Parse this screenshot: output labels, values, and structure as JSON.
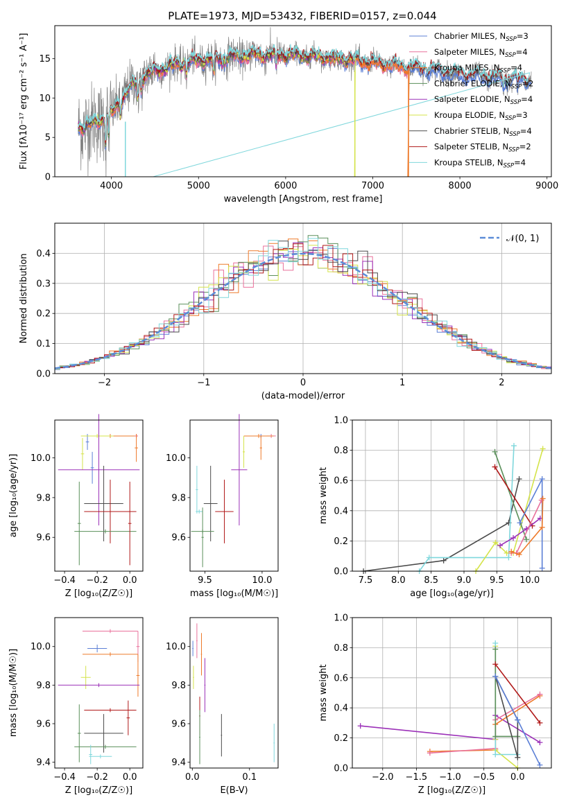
{
  "figure": {
    "title": "PLATE=1973, MJD=53432, FIBERID=0157, z=0.044"
  },
  "colors": {
    "chabrier_miles": "#5b7fd6",
    "salpeter_miles": "#e9709b",
    "kroupa_miles": "#ee7a2a",
    "chabrier_elodie": "#5a8f5a",
    "salpeter_elodie": "#9b30b8",
    "kroupa_elodie": "#d4e34a",
    "chabrier_stelib": "#4a4a4a",
    "salpeter_stelib": "#b01818",
    "kroupa_stelib": "#7fd7dc",
    "data_gray": "#7f7f7f",
    "gauss": "#5b8cd8"
  },
  "chart_data": [
    {
      "type": "line",
      "panel": "spectrum",
      "xlabel": "wavelength [Angstrom, rest frame]",
      "ylabel": "Flux [f$_\\lambda$10$^{-17}$ erg cm$^{-2}$ s$^{-1}$ A$^{-1}$]",
      "ylabel_text": "Flux [fλ10⁻¹⁷ erg cm⁻² s⁻¹ A⁻¹]",
      "xlim": [
        3350,
        9050
      ],
      "ylim": [
        0,
        19.2
      ],
      "xticks": [
        4000,
        5000,
        6000,
        7000,
        8000,
        9000
      ],
      "yticks": [
        0,
        5,
        10,
        15
      ],
      "grid": false,
      "legend_position": "right",
      "legend": [
        {
          "name": "Chabrier MILES, N",
          "sub": "SSP",
          "tail": "=3",
          "color_key": "chabrier_miles"
        },
        {
          "name": "Salpeter MILES, N",
          "sub": "SSP",
          "tail": "=4",
          "color_key": "salpeter_miles"
        },
        {
          "name": "Kroupa MILES, N",
          "sub": "SSP",
          "tail": "=4",
          "color_key": "kroupa_miles"
        },
        {
          "name": "Chabrier ELODIE, N",
          "sub": "SSP",
          "tail": "=2",
          "color_key": "chabrier_elodie"
        },
        {
          "name": "Salpeter ELODIE, N",
          "sub": "SSP",
          "tail": "=4",
          "color_key": "salpeter_elodie"
        },
        {
          "name": "Kroupa ELODIE, N",
          "sub": "SSP",
          "tail": "=3",
          "color_key": "kroupa_elodie"
        },
        {
          "name": "Chabrier STELIB, N",
          "sub": "SSP",
          "tail": "=4",
          "color_key": "chabrier_stelib"
        },
        {
          "name": "Salpeter STELIB, N",
          "sub": "SSP",
          "tail": "=2",
          "color_key": "salpeter_stelib"
        },
        {
          "name": "Kroupa STELIB, N",
          "sub": "SSP",
          "tail": "=4",
          "color_key": "kroupa_stelib"
        }
      ],
      "continuum": [
        [
          3600,
          6.2
        ],
        [
          3800,
          6.8
        ],
        [
          4000,
          8.0
        ],
        [
          4100,
          9.5
        ],
        [
          4200,
          11.3
        ],
        [
          4400,
          13.0
        ],
        [
          4700,
          14.2
        ],
        [
          5000,
          14.8
        ],
        [
          5300,
          15.2
        ],
        [
          5600,
          15.5
        ],
        [
          6000,
          15.5
        ],
        [
          6500,
          15.2
        ],
        [
          7000,
          14.5
        ],
        [
          7500,
          13.8
        ],
        [
          8000,
          13.0
        ],
        [
          8500,
          12.5
        ],
        [
          8800,
          12.3
        ]
      ],
      "cutoffs": {
        "kroupa_elodie": [
          6790,
          6800
        ],
        "kroupa_miles": [
          7400,
          7420
        ],
        "kroupa_stelib": [
          4150,
          4170
        ]
      }
    },
    {
      "type": "histogram",
      "panel": "residuals",
      "xlabel": "(data-model)/error",
      "ylabel": "Normed distribution",
      "xlim": [
        -2.5,
        2.5
      ],
      "ylim": [
        0,
        0.5
      ],
      "xticks": [
        -2,
        -1,
        0,
        1,
        2
      ],
      "yticks": [
        0.0,
        0.1,
        0.2,
        0.3,
        0.4
      ],
      "grid": true,
      "legend_position": "top-right",
      "gauss_label": "𝒩(0, 1)",
      "bin_width": 0.1
    },
    {
      "type": "errorbar",
      "panel": "age-vs-Z",
      "xlabel": "Z [log₁₀(Z/Z☉)]",
      "ylabel": "age  [log₁₀(age/yr)]",
      "xlim": [
        -0.46,
        0.08
      ],
      "ylim": [
        9.43,
        10.19
      ],
      "xticks": [
        -0.4,
        -0.2,
        0.0
      ],
      "yticks": [
        9.6,
        9.8,
        10.0
      ],
      "points": [
        {
          "c": "chabrier_miles",
          "x": -0.26,
          "y": 10.08,
          "xe": 0.01,
          "ye": 0.04
        },
        {
          "c": "kroupa_miles",
          "x": -0.12,
          "y": 10.11,
          "xe": 0.17,
          "ye": 0.01
        },
        {
          "c": "kroupa_elodie",
          "x": -0.2,
          "y": 10.11,
          "xe": 0.1,
          "ye": 0.01
        },
        {
          "c": "salpeter_miles",
          "x": 0.04,
          "y": 10.11,
          "xe": 0.01,
          "ye": 0.01
        },
        {
          "c": "kroupa_miles",
          "x": 0.04,
          "y": 10.05,
          "xe": 0.01,
          "ye": 0.07
        },
        {
          "c": "kroupa_elodie",
          "x": -0.29,
          "y": 10.02,
          "xe": 0.01,
          "ye": 0.08
        },
        {
          "c": "chabrier_miles",
          "x": -0.23,
          "y": 9.95,
          "xe": 0.01,
          "ye": 0.08
        },
        {
          "c": "salpeter_elodie",
          "x": -0.19,
          "y": 9.94,
          "xe": 0.25,
          "ye": 0.28
        },
        {
          "c": "chabrier_stelib",
          "x": -0.16,
          "y": 9.77,
          "xe": 0.12,
          "ye": 0.19
        },
        {
          "c": "salpeter_stelib",
          "x": -0.12,
          "y": 9.73,
          "xe": 0.16,
          "ye": 0.16
        },
        {
          "c": "chabrier_elodie",
          "x": -0.31,
          "y": 9.67,
          "xe": 0.01,
          "ye": 0.21
        },
        {
          "c": "chabrier_elodie",
          "x": -0.15,
          "y": 9.63,
          "xe": 0.19,
          "ye": 0.01
        },
        {
          "c": "salpeter_stelib",
          "x": 0.0,
          "y": 9.67,
          "xe": 0.01,
          "ye": 0.21
        }
      ]
    },
    {
      "type": "errorbar",
      "panel": "age-vs-mass",
      "xlabel": "mass [log₁₀(M/M☉)]",
      "ylabel": "",
      "xlim": [
        9.37,
        10.14
      ],
      "ylim": [
        9.43,
        10.19
      ],
      "xticks": [
        9.5,
        10.0
      ],
      "yticks": [
        9.6,
        9.8,
        10.0
      ],
      "points": [
        {
          "c": "salpeter_miles",
          "x": 10.08,
          "y": 10.11,
          "xe": 0.04,
          "ye": 0.01
        },
        {
          "c": "chabrier_miles",
          "x": 9.99,
          "y": 10.11,
          "xe": 0.01,
          "ye": 0.01
        },
        {
          "c": "kroupa_miles",
          "x": 9.97,
          "y": 10.11,
          "xe": 0.13,
          "ye": 0.01
        },
        {
          "c": "kroupa_miles",
          "x": 9.99,
          "y": 10.05,
          "xe": 0.01,
          "ye": 0.06
        },
        {
          "c": "kroupa_elodie",
          "x": 9.84,
          "y": 10.03,
          "xe": 0.01,
          "ye": 0.08
        },
        {
          "c": "salpeter_elodie",
          "x": 9.8,
          "y": 9.94,
          "xe": 0.07,
          "ye": 0.28
        },
        {
          "c": "kroupa_stelib",
          "x": 9.43,
          "y": 9.84,
          "xe": 0.01,
          "ye": 0.12
        },
        {
          "c": "chabrier_stelib",
          "x": 9.55,
          "y": 9.77,
          "xe": 0.06,
          "ye": 0.19
        },
        {
          "c": "salpeter_stelib",
          "x": 9.67,
          "y": 9.73,
          "xe": 0.08,
          "ye": 0.16
        },
        {
          "c": "kroupa_stelib",
          "x": 9.45,
          "y": 9.73,
          "xe": 0.03,
          "ye": 0.01
        },
        {
          "c": "chabrier_elodie",
          "x": 9.48,
          "y": 9.63,
          "xe": 0.1,
          "ye": 0.01
        },
        {
          "c": "chabrier_elodie",
          "x": 9.48,
          "y": 9.6,
          "xe": 0.01,
          "ye": 0.15
        }
      ]
    },
    {
      "type": "line",
      "panel": "massweight-vs-age",
      "xlabel": "age  [log₁₀(age/yr)]",
      "ylabel": "mass weight",
      "xlim": [
        7.3,
        10.33
      ],
      "ylim": [
        0,
        1.0
      ],
      "xticks": [
        7.5,
        8.0,
        8.5,
        9.0,
        9.5,
        10.0
      ],
      "yticks": [
        0.0,
        0.2,
        0.4,
        0.6,
        0.8,
        1.0
      ],
      "grid": true,
      "series": [
        {
          "c": "chabrier_stelib",
          "x": [
            7.47,
            8.69,
            9.68,
            9.84
          ],
          "y": [
            0.0,
            0.07,
            0.32,
            0.61
          ]
        },
        {
          "c": "kroupa_stelib",
          "x": [
            8.32,
            8.47,
            9.68,
            9.76
          ],
          "y": [
            0.0,
            0.09,
            0.09,
            0.83
          ]
        },
        {
          "c": "kroupa_elodie",
          "x": [
            9.18,
            9.48,
            9.65,
            9.75,
            10.2
          ],
          "y": [
            0.0,
            0.19,
            0.12,
            0.12,
            0.81
          ]
        },
        {
          "c": "chabrier_elodie",
          "x": [
            9.47,
            9.95
          ],
          "y": [
            0.79,
            0.21
          ]
        },
        {
          "c": "salpeter_stelib",
          "x": [
            9.47,
            10.04
          ],
          "y": [
            0.69,
            0.3
          ]
        },
        {
          "c": "salpeter_elodie",
          "x": [
            9.55,
            9.75,
            9.95,
            10.16
          ],
          "y": [
            0.17,
            0.22,
            0.28,
            0.35
          ]
        },
        {
          "c": "chabrier_miles",
          "x": [
            9.85,
            10.19,
            10.19
          ],
          "y": [
            0.32,
            0.61,
            0.02
          ]
        },
        {
          "c": "salpeter_miles",
          "x": [
            9.72,
            9.8,
            10.18
          ],
          "y": [
            0.12,
            0.12,
            0.47
          ]
        },
        {
          "c": "kroupa_miles",
          "x": [
            9.72,
            9.84,
            10.19,
            10.2
          ],
          "y": [
            0.13,
            0.11,
            0.29,
            0.48
          ]
        }
      ]
    },
    {
      "type": "errorbar",
      "panel": "mass-vs-Z",
      "xlabel": "Z [log₁₀(Z/Z☉)]",
      "ylabel": "mass [log₁₀(M/M☉)]",
      "xlim": [
        -0.46,
        0.08
      ],
      "ylim": [
        9.37,
        10.15
      ],
      "xticks": [
        -0.4,
        -0.2,
        0.0
      ],
      "yticks": [
        9.4,
        9.6,
        9.8,
        10.0
      ],
      "points": [
        {
          "c": "salpeter_miles",
          "x": -0.12,
          "y": 10.08,
          "xe": 0.17,
          "ye": 0.01
        },
        {
          "c": "salpeter_miles",
          "x": 0.05,
          "y": 10.0,
          "xe": 0.01,
          "ye": 0.08
        },
        {
          "c": "chabrier_miles",
          "x": -0.2,
          "y": 9.99,
          "xe": 0.06,
          "ye": 0.02
        },
        {
          "c": "kroupa_miles",
          "x": -0.12,
          "y": 9.96,
          "xe": 0.17,
          "ye": 0.01
        },
        {
          "c": "kroupa_miles",
          "x": 0.05,
          "y": 9.85,
          "xe": 0.01,
          "ye": 0.11
        },
        {
          "c": "kroupa_elodie",
          "x": -0.27,
          "y": 9.84,
          "xe": 0.03,
          "ye": 0.06
        },
        {
          "c": "salpeter_elodie",
          "x": -0.19,
          "y": 9.8,
          "xe": 0.25,
          "ye": 0.01
        },
        {
          "c": "salpeter_stelib",
          "x": -0.12,
          "y": 9.67,
          "xe": 0.16,
          "ye": 0.01
        },
        {
          "c": "salpeter_stelib",
          "x": -0.01,
          "y": 9.63,
          "xe": 0.01,
          "ye": 0.09
        },
        {
          "c": "chabrier_stelib",
          "x": -0.16,
          "y": 9.55,
          "xe": 0.12,
          "ye": 0.1
        },
        {
          "c": "chabrier_elodie",
          "x": -0.15,
          "y": 9.48,
          "xe": 0.19,
          "ye": 0.01
        },
        {
          "c": "chabrier_elodie",
          "x": -0.31,
          "y": 9.55,
          "xe": 0.01,
          "ye": 0.15
        },
        {
          "c": "kroupa_stelib",
          "x": -0.18,
          "y": 9.43,
          "xe": 0.07,
          "ye": 0.01
        },
        {
          "c": "kroupa_stelib",
          "x": -0.24,
          "y": 9.44,
          "xe": 0.01,
          "ye": 0.05
        }
      ]
    },
    {
      "type": "errorbar",
      "panel": "mass-vs-ebv",
      "xlabel": "E(B-V)",
      "ylabel": "",
      "xlim": [
        -0.004,
        0.15
      ],
      "ylim": [
        9.37,
        10.15
      ],
      "xticks": [
        0.0,
        0.1
      ],
      "yticks": [
        9.4,
        9.6,
        9.8,
        10.0
      ],
      "points": [
        {
          "c": "chabrier_miles",
          "x": 0.001,
          "y": 9.99,
          "xe": 0.001,
          "ye": 0.04
        },
        {
          "c": "salpeter_miles",
          "x": 0.008,
          "y": 10.03,
          "xe": 0.001,
          "ye": 0.09
        },
        {
          "c": "kroupa_miles",
          "x": 0.016,
          "y": 9.96,
          "xe": 0.001,
          "ye": 0.11
        },
        {
          "c": "kroupa_elodie",
          "x": 0.002,
          "y": 9.84,
          "xe": 0.001,
          "ye": 0.06
        },
        {
          "c": "salpeter_elodie",
          "x": 0.022,
          "y": 9.8,
          "xe": 0.001,
          "ye": 0.14
        },
        {
          "c": "salpeter_stelib",
          "x": 0.013,
          "y": 9.64,
          "xe": 0.001,
          "ye": 0.1
        },
        {
          "c": "chabrier_elodie",
          "x": 0.013,
          "y": 9.53,
          "xe": 0.001,
          "ye": 0.14
        },
        {
          "c": "chabrier_stelib",
          "x": 0.051,
          "y": 9.54,
          "xe": 0.001,
          "ye": 0.11
        },
        {
          "c": "kroupa_stelib",
          "x": 0.143,
          "y": 9.5,
          "xe": 0.001,
          "ye": 0.1
        }
      ]
    },
    {
      "type": "line",
      "panel": "massweight-vs-Z",
      "xlabel": "Z [log₁₀(Z/Z☉)]",
      "ylabel": "mass weight",
      "xlim": [
        -2.45,
        0.5
      ],
      "ylim": [
        0,
        1.0
      ],
      "xticks": [
        -2.0,
        -1.5,
        -1.0,
        -0.5,
        0.0
      ],
      "yticks": [
        0.0,
        0.2,
        0.4,
        0.6,
        0.8,
        1.0
      ],
      "grid": true,
      "series": [
        {
          "c": "salpeter_elodie",
          "x": [
            -2.33,
            -0.33,
            -0.33,
            0.33
          ],
          "y": [
            0.28,
            0.19,
            0.35,
            0.17
          ]
        },
        {
          "c": "kroupa_miles",
          "x": [
            -1.3,
            -0.33,
            -0.33,
            0.33
          ],
          "y": [
            0.11,
            0.12,
            0.29,
            0.48
          ]
        },
        {
          "c": "salpeter_miles",
          "x": [
            -1.3,
            -0.33,
            -0.33,
            0.33
          ],
          "y": [
            0.1,
            0.13,
            0.32,
            0.49
          ]
        },
        {
          "c": "kroupa_elodie",
          "x": [
            -0.33,
            -0.33,
            -0.33,
            0.0
          ],
          "y": [
            0.81,
            0.19,
            0.12,
            0.0
          ]
        },
        {
          "c": "kroupa_stelib",
          "x": [
            -0.33,
            -0.33,
            0.0
          ],
          "y": [
            0.83,
            0.09,
            0.09
          ]
        },
        {
          "c": "chabrier_elodie",
          "x": [
            -0.33,
            -0.33,
            0.0
          ],
          "y": [
            0.79,
            0.21,
            0.21
          ]
        },
        {
          "c": "salpeter_stelib",
          "x": [
            -0.33,
            0.33
          ],
          "y": [
            0.69,
            0.3
          ]
        },
        {
          "c": "chabrier_stelib",
          "x": [
            -0.33,
            0.0,
            0.0,
            -0.33
          ],
          "y": [
            0.61,
            0.32,
            0.07,
            0.61
          ]
        },
        {
          "c": "chabrier_miles",
          "x": [
            -0.33,
            0.0,
            0.33
          ],
          "y": [
            0.61,
            0.32,
            0.02
          ]
        }
      ]
    }
  ]
}
